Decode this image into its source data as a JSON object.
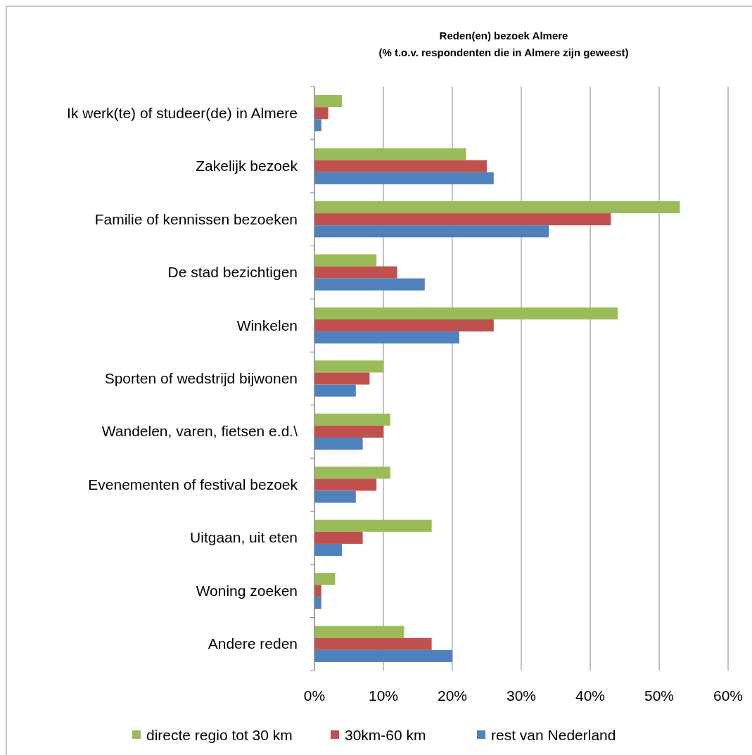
{
  "chart_data": {
    "type": "bar",
    "orientation": "horizontal",
    "title": "Reden(en) bezoek Almere",
    "subtitle": "(%  t.o.v. respondenten die in Almere zijn geweest)",
    "categories": [
      "Ik werk(te) of studeer(de) in Almere",
      "Zakelijk bezoek",
      "Familie of kennissen bezoeken",
      "De stad bezichtigen",
      "Winkelen",
      "Sporten of wedstrijd bijwonen",
      "Wandelen, varen, fietsen e.d.\\",
      "Evenementen of festival bezoek",
      "Uitgaan, uit eten",
      "Woning zoeken",
      "Andere reden"
    ],
    "series": [
      {
        "name": "directe regio tot 30 km",
        "color": "#9bbb59",
        "values": [
          4,
          22,
          53,
          9,
          44,
          10,
          11,
          11,
          17,
          3,
          13
        ]
      },
      {
        "name": "30km-60 km",
        "color": "#c0504d",
        "values": [
          2,
          25,
          43,
          12,
          26,
          8,
          10,
          9,
          7,
          1,
          17
        ]
      },
      {
        "name": "rest van Nederland",
        "color": "#4f81bd",
        "values": [
          1,
          26,
          34,
          16,
          21,
          6,
          7,
          6,
          4,
          1,
          20
        ]
      }
    ],
    "xlim": [
      0,
      60
    ],
    "xticks": [
      {
        "value": 0,
        "label": "0%"
      },
      {
        "value": 10,
        "label": "10%"
      },
      {
        "value": 20,
        "label": "20%"
      },
      {
        "value": 30,
        "label": "30%"
      },
      {
        "value": 40,
        "label": "40%"
      },
      {
        "value": 50,
        "label": "50%"
      },
      {
        "value": 60,
        "label": "60%"
      }
    ],
    "grid": "x",
    "legend": "bottom"
  }
}
